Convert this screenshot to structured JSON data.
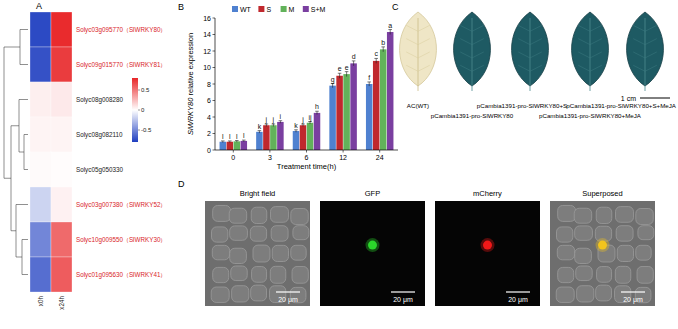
{
  "panel_labels": [
    "A",
    "B",
    "C",
    "D"
  ],
  "chart_data": [
    {
      "type": "heatmap",
      "x_categories": [
        "x0h",
        "x24h"
      ],
      "y_categories": [
        "Solyc03g095770（SlWRKY80）",
        "Solyc09g015770（SlWRKY81）",
        "Solyc08g008280",
        "Solyc08g082110",
        "Solyc05g050330",
        "Solyc03g007380（SlWRKY52）",
        "Solyc10g009550（SlWRKY30）",
        "Solyc01g095630（SlWRKY41）"
      ],
      "cells": [
        [
          -0.75,
          0.78
        ],
        [
          -0.72,
          0.72
        ],
        [
          0.06,
          0.08
        ],
        [
          0.04,
          0.04
        ],
        [
          0.02,
          0.01
        ],
        [
          -0.18,
          0.05
        ],
        [
          -0.5,
          0.55
        ],
        [
          -0.6,
          0.6
        ]
      ],
      "color_range": [
        -0.8,
        0.8
      ],
      "color_ticks": [
        0.5,
        0,
        -0.5
      ]
    },
    {
      "type": "bar",
      "categories": [
        "0",
        "3",
        "6",
        "12",
        "24"
      ],
      "xlabel": "Treatment time(h)",
      "ylabel": "SlWRKY80 relative expression",
      "ylim": [
        0,
        16
      ],
      "yticks": [
        0,
        2,
        4,
        6,
        8,
        10,
        12,
        14,
        16
      ],
      "grid": false,
      "legend": "top",
      "series": [
        {
          "name": "WT",
          "color": "#4f81d0",
          "values": [
            1,
            2.2,
            2.3,
            7.8,
            8.0
          ],
          "errors": [
            0.1,
            0.15,
            0.15,
            0.25,
            0.25
          ],
          "letters": [
            "l",
            "k",
            "k",
            "g",
            "f"
          ]
        },
        {
          "name": "S",
          "color": "#c0282d",
          "values": [
            1,
            3.0,
            3.0,
            9.0,
            10.8
          ],
          "errors": [
            0.1,
            0.15,
            0.15,
            0.3,
            0.3
          ],
          "letters": [
            "l",
            "j",
            "j",
            "e",
            "c"
          ]
        },
        {
          "name": "M",
          "color": "#62b25a",
          "values": [
            1.05,
            3.0,
            3.3,
            9.2,
            12.2
          ],
          "errors": [
            0.1,
            0.15,
            0.15,
            0.3,
            0.3
          ],
          "letters": [
            "l",
            "j",
            "ij",
            "e",
            "b"
          ]
        },
        {
          "name": "S+M",
          "color": "#7a3fa0",
          "values": [
            1.1,
            3.4,
            4.5,
            10.5,
            14.3
          ],
          "errors": [
            0.1,
            0.15,
            0.2,
            0.3,
            0.3
          ],
          "letters": [
            "l",
            "i",
            "h",
            "d",
            "a"
          ]
        }
      ]
    }
  ],
  "panel_c": {
    "labels": [
      "AC(WT)",
      "pCambia1391-pro-SlWRKY80",
      "pCambia1391-pro-SlWRKY80+S",
      "pCambia1391-pro-SlWRKY80+MeJA",
      "pCambia1391-pro-SlWRKY80+S+MeJA"
    ],
    "scale_label": "1 cm"
  },
  "panel_d": {
    "labels": [
      "Bright field",
      "GFP",
      "mCherry",
      "Superposed"
    ],
    "scale_label": "20 μm"
  }
}
